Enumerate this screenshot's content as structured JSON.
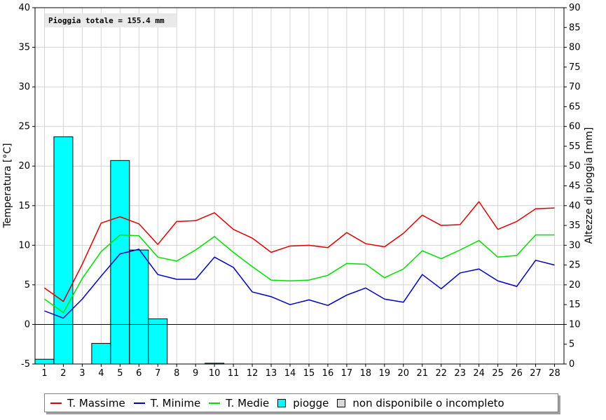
{
  "chart_data": {
    "type": "line",
    "annotation": "Pioggia totale = 155.4 mm",
    "ylabel_left": "Temperatura [°C]",
    "ylabel_right": "Altezze di pioggia [mm]",
    "ylim_left": [
      -5,
      40
    ],
    "ylim_right": [
      0,
      90
    ],
    "yticks_left": [
      -5,
      0,
      5,
      10,
      15,
      20,
      25,
      30,
      35,
      40
    ],
    "yticks_right": [
      0,
      5,
      10,
      15,
      20,
      25,
      30,
      35,
      40,
      45,
      50,
      55,
      60,
      65,
      70,
      75,
      80,
      85,
      90
    ],
    "categories": [
      "1",
      "2",
      "3",
      "4",
      "5",
      "6",
      "7",
      "8",
      "9",
      "10",
      "11",
      "12",
      "13",
      "14",
      "15",
      "16",
      "17",
      "18",
      "19",
      "20",
      "21",
      "22",
      "23",
      "24",
      "25",
      "26",
      "27",
      "28"
    ],
    "grid": true,
    "series": [
      {
        "name": "T. Massime",
        "color": "#dd0000",
        "axis": "left",
        "values": [
          4.6,
          2.9,
          7.6,
          12.8,
          13.6,
          12.7,
          10.1,
          13.0,
          13.1,
          14.1,
          12.0,
          10.9,
          9.1,
          9.9,
          10.0,
          9.7,
          11.6,
          10.2,
          9.8,
          11.5,
          13.8,
          12.5,
          12.6,
          15.5,
          12.0,
          13.0,
          14.6,
          14.7
        ]
      },
      {
        "name": "T. Minime",
        "color": "#0000bb",
        "axis": "left",
        "values": [
          1.7,
          0.8,
          3.2,
          6.1,
          8.9,
          9.5,
          6.3,
          5.7,
          5.7,
          8.5,
          7.2,
          4.1,
          3.5,
          2.5,
          3.1,
          2.4,
          3.7,
          4.6,
          3.2,
          2.8,
          6.3,
          4.5,
          6.5,
          7.0,
          5.5,
          4.8,
          8.1,
          7.5
        ]
      },
      {
        "name": "T. Medie",
        "color": "#00dd00",
        "axis": "left",
        "values": [
          3.2,
          1.5,
          5.8,
          9.2,
          11.3,
          11.2,
          8.5,
          8.0,
          9.4,
          11.1,
          9.1,
          7.3,
          5.6,
          5.5,
          5.6,
          6.2,
          7.7,
          7.6,
          5.9,
          7.0,
          9.3,
          8.3,
          9.4,
          10.6,
          8.5,
          8.7,
          11.3,
          11.3
        ]
      },
      {
        "name": "piogge",
        "color": "#00ffff",
        "axis": "right",
        "style": "bar",
        "values": [
          1.2,
          57.4,
          0,
          5.2,
          51.4,
          28.8,
          11.4,
          0,
          0,
          0.2,
          0,
          0,
          0,
          0,
          0,
          0,
          0,
          0,
          0,
          0,
          0,
          0,
          0,
          0,
          0,
          0,
          0,
          0
        ]
      }
    ],
    "legend": [
      {
        "label": "T. Massime",
        "color": "#dd0000",
        "kind": "line"
      },
      {
        "label": "T. Minime",
        "color": "#0000bb",
        "kind": "line"
      },
      {
        "label": "T. Medie",
        "color": "#00dd00",
        "kind": "line"
      },
      {
        "label": "piogge",
        "color": "#00ffff",
        "kind": "box"
      },
      {
        "label": "non disponibile o incompleto",
        "color": "#d8d8d8",
        "kind": "box"
      }
    ],
    "legend_position": "bottom"
  }
}
